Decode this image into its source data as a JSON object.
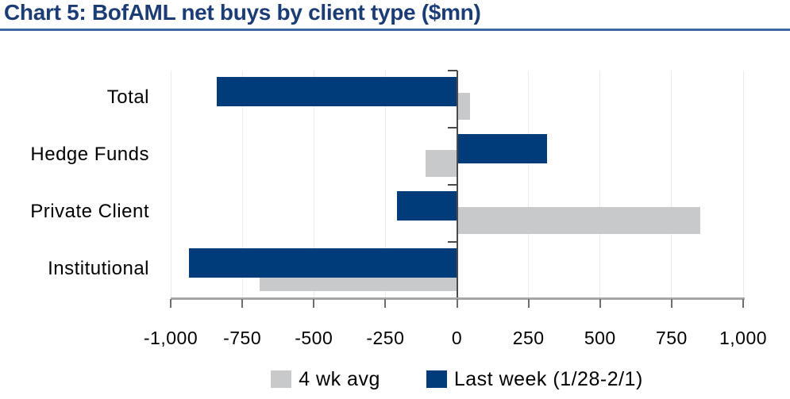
{
  "title": "Chart 5: BofAML net buys by client type ($mn)",
  "colors": {
    "navy": "#003b7a",
    "gray": "#c8c9cb",
    "title_text": "#1b3c74",
    "title_underline": "#3e68a2",
    "zero_axis": "#4a4a4a",
    "x_axis": "#a6a6a6",
    "gridline": "#ebebeb",
    "text": "#000000"
  },
  "legend": [
    {
      "label": "4 wk avg",
      "swatch": "gray-square"
    },
    {
      "label": "Last week (1/28-2/1)",
      "swatch": "navy-square"
    }
  ],
  "chart_data": {
    "type": "bar",
    "orientation": "horizontal",
    "title": "Chart 5: BofAML net buys by client type ($mn)",
    "categories": [
      "Total",
      "Hedge Funds",
      "Private Client",
      "Institutional"
    ],
    "series": [
      {
        "name": "4 wk avg",
        "color": "#c8c9cb",
        "values": [
          45,
          -110,
          850,
          -690
        ]
      },
      {
        "name": "Last week (1/28-2/1)",
        "color": "#003b7a",
        "values": [
          -840,
          315,
          -210,
          -935
        ]
      }
    ],
    "xlabel": "",
    "ylabel": "",
    "xlim": [
      -1000,
      1000
    ],
    "xticks": [
      -1000,
      -750,
      -500,
      -250,
      0,
      250,
      500,
      750,
      1000
    ],
    "xtick_labels": [
      "-1,000",
      "-750",
      "-500",
      "-250",
      "0",
      "250",
      "500",
      "750",
      "1,000"
    ],
    "grid": true,
    "legend_position": "bottom",
    "units": "$mn"
  }
}
